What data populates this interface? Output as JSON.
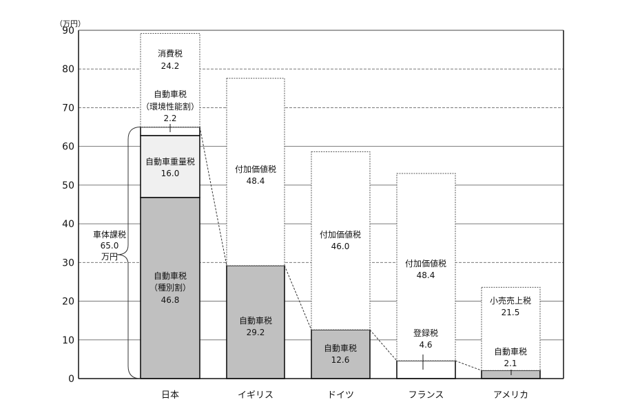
{
  "chart_data": {
    "type": "bar",
    "stacked": true,
    "title": "",
    "xlabel": "",
    "ylabel": "（万円）",
    "ylim": [
      0,
      90
    ],
    "yticks": [
      0,
      10,
      20,
      30,
      40,
      50,
      60,
      70,
      80,
      90
    ],
    "grid": true,
    "categories": [
      "日本",
      "イギリス",
      "ドイツ",
      "フランス",
      "アメリカ"
    ],
    "bars": [
      {
        "category": "日本",
        "segments": [
          {
            "name": "自動車税（種別割）",
            "label_lines": [
              "自動車税",
              "（種別割）",
              "46.8"
            ],
            "value": 46.8,
            "fill": "#c0c0c0",
            "border": "solid"
          },
          {
            "name": "自動車重量税",
            "label_lines": [
              "自動車重量税",
              "16.0"
            ],
            "value": 16.0,
            "fill": "#f0f0f0",
            "border": "solid"
          },
          {
            "name": "自動車税（環境性能割）",
            "label_lines": [
              "自動車税",
              "（環境性能割）",
              "2.2"
            ],
            "value": 2.2,
            "fill": "#ffffff",
            "border": "solid"
          },
          {
            "name": "消費税",
            "label_lines": [
              "消費税",
              "24.2"
            ],
            "value": 24.2,
            "fill": "#ffffff",
            "border": "dotted"
          }
        ]
      },
      {
        "category": "イギリス",
        "segments": [
          {
            "name": "自動車税",
            "label_lines": [
              "自動車税",
              "29.2"
            ],
            "value": 29.2,
            "fill": "#c0c0c0",
            "border": "solid"
          },
          {
            "name": "付加価値税",
            "label_lines": [
              "付加価値税",
              "48.4"
            ],
            "value": 48.4,
            "fill": "#ffffff",
            "border": "dotted"
          }
        ]
      },
      {
        "category": "ドイツ",
        "segments": [
          {
            "name": "自動車税",
            "label_lines": [
              "自動車税",
              "12.6"
            ],
            "value": 12.6,
            "fill": "#c0c0c0",
            "border": "solid"
          },
          {
            "name": "付加価値税",
            "label_lines": [
              "付加価値税",
              "46.0"
            ],
            "value": 46.0,
            "fill": "#ffffff",
            "border": "dotted"
          }
        ]
      },
      {
        "category": "フランス",
        "segments": [
          {
            "name": "登録税",
            "label_lines": [
              "登録税",
              "4.6"
            ],
            "value": 4.6,
            "fill": "#ffffff",
            "border": "solid"
          },
          {
            "name": "付加価値税",
            "label_lines": [
              "付加価値税",
              "48.4"
            ],
            "value": 48.4,
            "fill": "#ffffff",
            "border": "dotted"
          }
        ]
      },
      {
        "category": "アメリカ",
        "segments": [
          {
            "name": "自動車税",
            "label_lines": [
              "自動車税",
              "2.1"
            ],
            "value": 2.1,
            "fill": "#c0c0c0",
            "border": "solid"
          },
          {
            "name": "小売売上税",
            "label_lines": [
              "小売売上税",
              "21.5"
            ],
            "value": 21.5,
            "fill": "#ffffff",
            "border": "dotted"
          }
        ]
      }
    ],
    "annotations": [
      {
        "type": "brace",
        "target": "日本",
        "range": [
          0,
          65.0
        ],
        "label_lines": [
          "車体課税",
          "65.0",
          "万円"
        ]
      },
      {
        "type": "dashed-connector",
        "description": "connects body-tax tops across countries: 65.0 → 29.2 → 12.6 → 4.6 → 2.1"
      }
    ]
  },
  "axis": {
    "unit_label": "（万円）",
    "tick_labels": [
      "0",
      "10",
      "20",
      "30",
      "40",
      "50",
      "60",
      "70",
      "80",
      "90"
    ]
  },
  "brace": {
    "line1": "車体課税",
    "line2": "65.0",
    "line3": "万円"
  }
}
